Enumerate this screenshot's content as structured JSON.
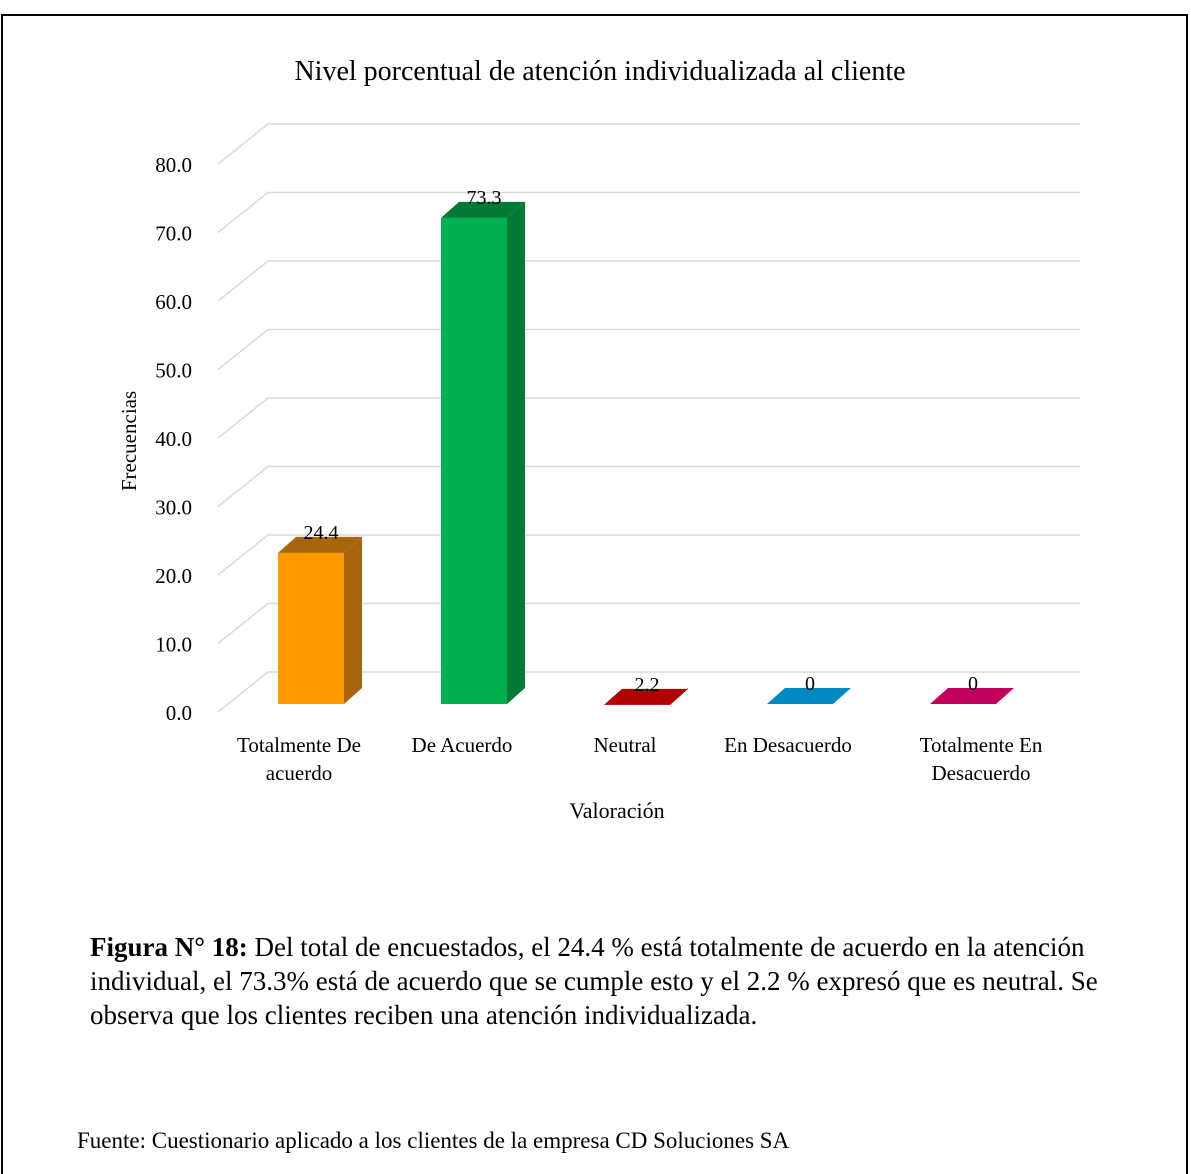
{
  "chart_data": {
    "type": "bar",
    "title": "Nivel porcentual de atención individualizada al cliente",
    "xlabel": "Valoración",
    "ylabel": "Frecuencias",
    "ylim": [
      0,
      80
    ],
    "yticks": [
      "0.0",
      "10.0",
      "20.0",
      "30.0",
      "40.0",
      "50.0",
      "60.0",
      "70.0",
      "80.0"
    ],
    "categories": [
      [
        "Totalmente De",
        "acuerdo"
      ],
      [
        "De Acuerdo"
      ],
      [
        "Neutral"
      ],
      [
        "En Desacuerdo"
      ],
      [
        "Totalmente En",
        "Desacuerdo"
      ]
    ],
    "values": [
      24.4,
      73.3,
      2.2,
      0,
      0
    ],
    "data_labels": [
      "24.4",
      "73.3",
      "2.2",
      "0",
      "0"
    ],
    "colors": [
      "#FF9A00",
      "#00B050",
      "#FF0000",
      "#0088C0",
      "#C0005A"
    ],
    "side_colors": [
      "#A8660C",
      "#007A35",
      "#B00000",
      "#005E87",
      "#850040"
    ],
    "grid": true,
    "legend": "none"
  },
  "caption": {
    "label": "Figura N° 18:",
    "text": " Del total de encuestados, el 24.4 % está totalmente de acuerdo en la atención individual, el 73.3% está de acuerdo que se cumple esto y el 2.2 % expresó que es neutral. Se observa que los clientes reciben una atención individualizada."
  },
  "source": "Fuente: Cuestionario aplicado a los clientes de la empresa CD Soluciones SA"
}
